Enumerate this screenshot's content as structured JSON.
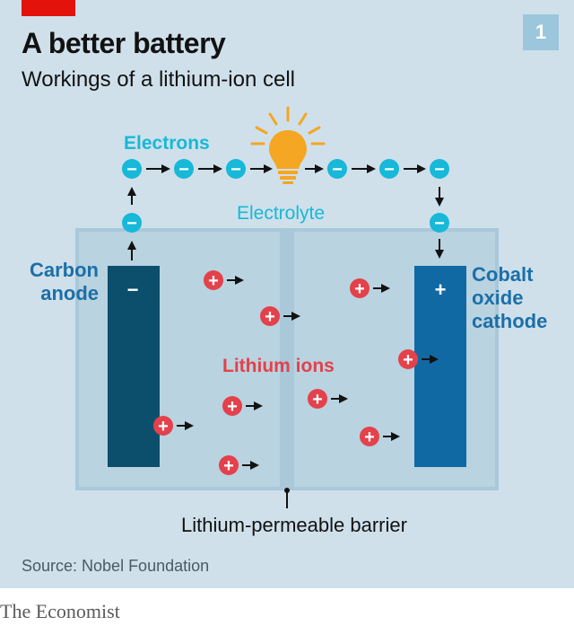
{
  "header": {
    "title": "A better battery",
    "subtitle": "Workings of a lithium-ion cell",
    "chart_number": "1"
  },
  "diagram": {
    "electrons_label": "Electrons",
    "electrolyte_label": "Electrolyte",
    "anode_label_line1": "Carbon",
    "anode_label_line2": "anode",
    "anode_sign": "−",
    "cathode_label_line1": "Cobalt",
    "cathode_label_line2": "oxide",
    "cathode_label_line3": "cathode",
    "cathode_sign": "+",
    "ions_label": "Lithium ions",
    "barrier_label": "Lithium-permeable barrier",
    "electron_symbol": "−",
    "ion_symbol": "+",
    "arrow_glyph": "→"
  },
  "footer": {
    "source": "Source: Nobel Foundation",
    "brand": "The Economist"
  },
  "colors": {
    "background": "#cfe0ea",
    "electron": "#17b8d8",
    "electron_label": "#17b8d8",
    "ion": "#e3414b",
    "ion_label": "#e3414b",
    "anode": "#0b4f6c",
    "cathode": "#1169a4",
    "electrode_label": "#1b6fa8",
    "bulb": "#f5a623",
    "accent_red": "#e3120b"
  }
}
